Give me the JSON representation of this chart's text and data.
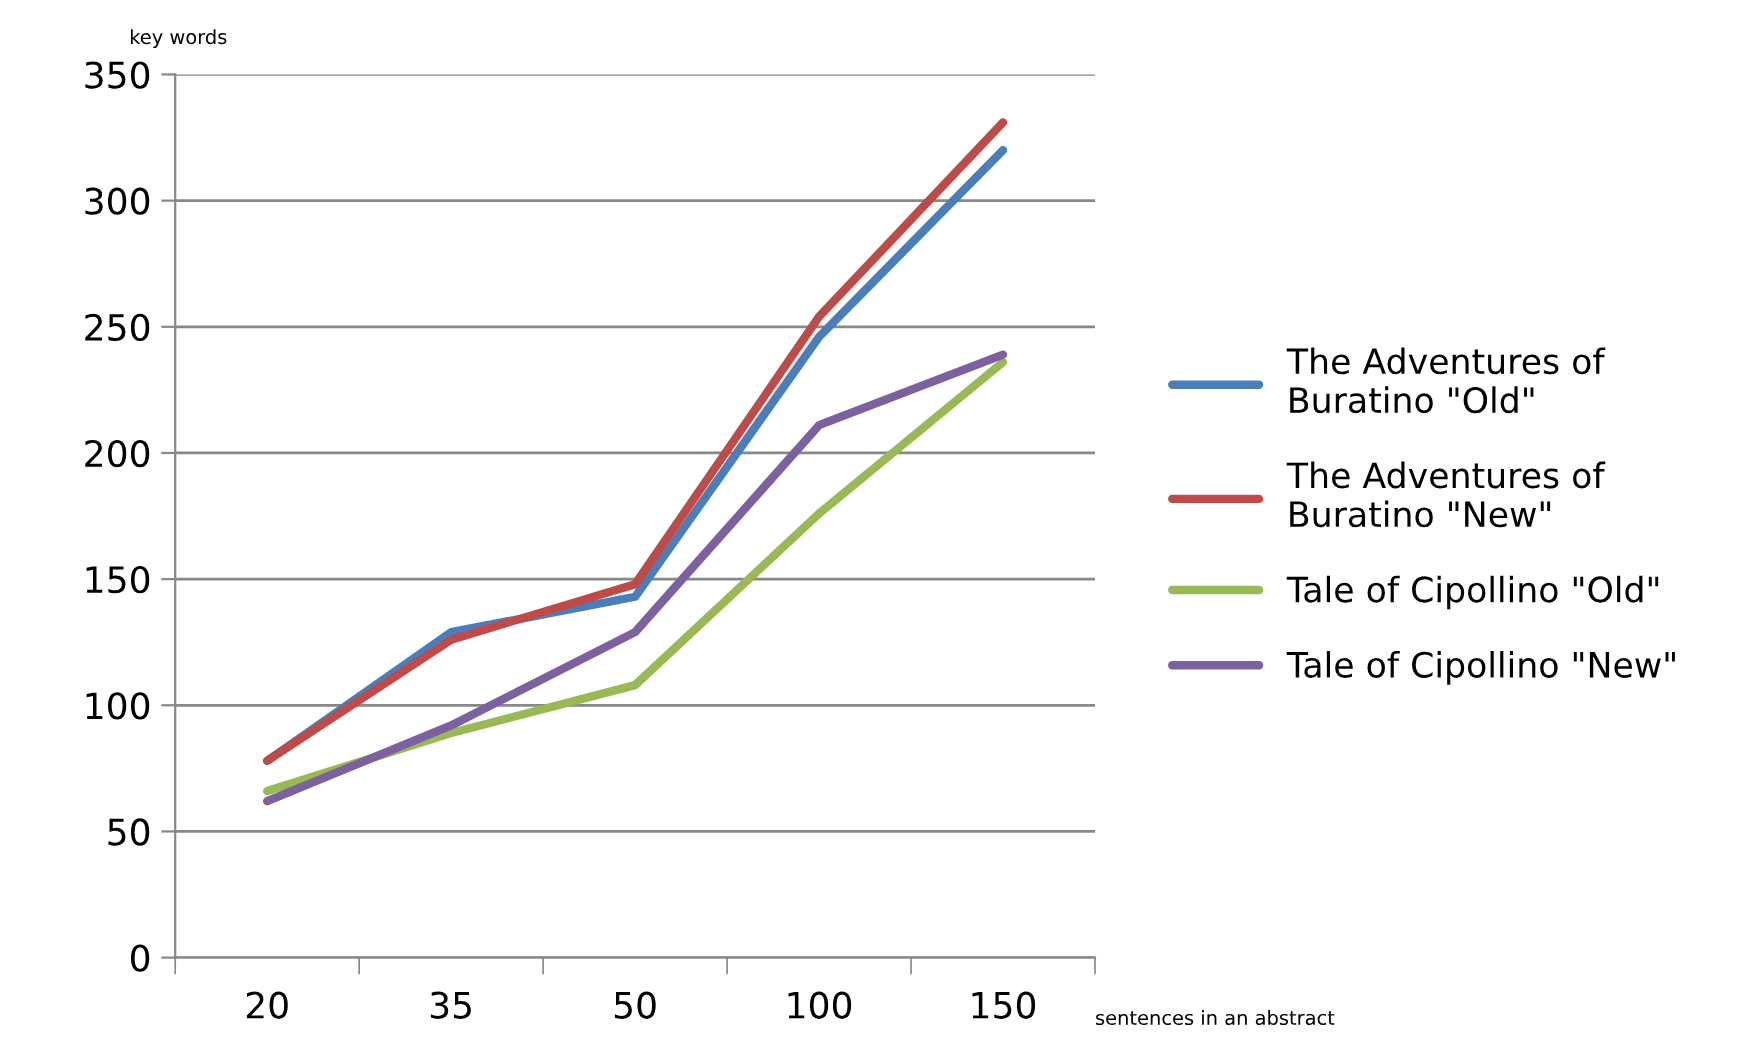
{
  "chart_data": {
    "type": "line",
    "ylabel": "key words",
    "xlabel": "sentences in an abstract",
    "categories": [
      "20",
      "35",
      "50",
      "100",
      "150"
    ],
    "series": [
      {
        "name": "The Adventures of\nBuratino \"Old\"",
        "color": "#4a7ebb",
        "values": [
          78,
          129,
          143,
          246,
          320
        ]
      },
      {
        "name": "The Adventures of\nBuratino \"New\"",
        "color": "#be4b48",
        "values": [
          78,
          126,
          148,
          254,
          331
        ]
      },
      {
        "name": "Tale of Cipollino \"Old\"",
        "color": "#98b954",
        "values": [
          66,
          89,
          108,
          176,
          236
        ]
      },
      {
        "name": "Tale of Cipollino \"New\"",
        "color": "#7d60a0",
        "values": [
          62,
          92,
          129,
          211,
          239
        ]
      }
    ],
    "ylim": [
      0,
      350
    ],
    "yticks": [
      0,
      50,
      100,
      150,
      200,
      250,
      300,
      350
    ],
    "grid": "y",
    "legend": "right",
    "marker": "none",
    "line_style": "solid"
  }
}
